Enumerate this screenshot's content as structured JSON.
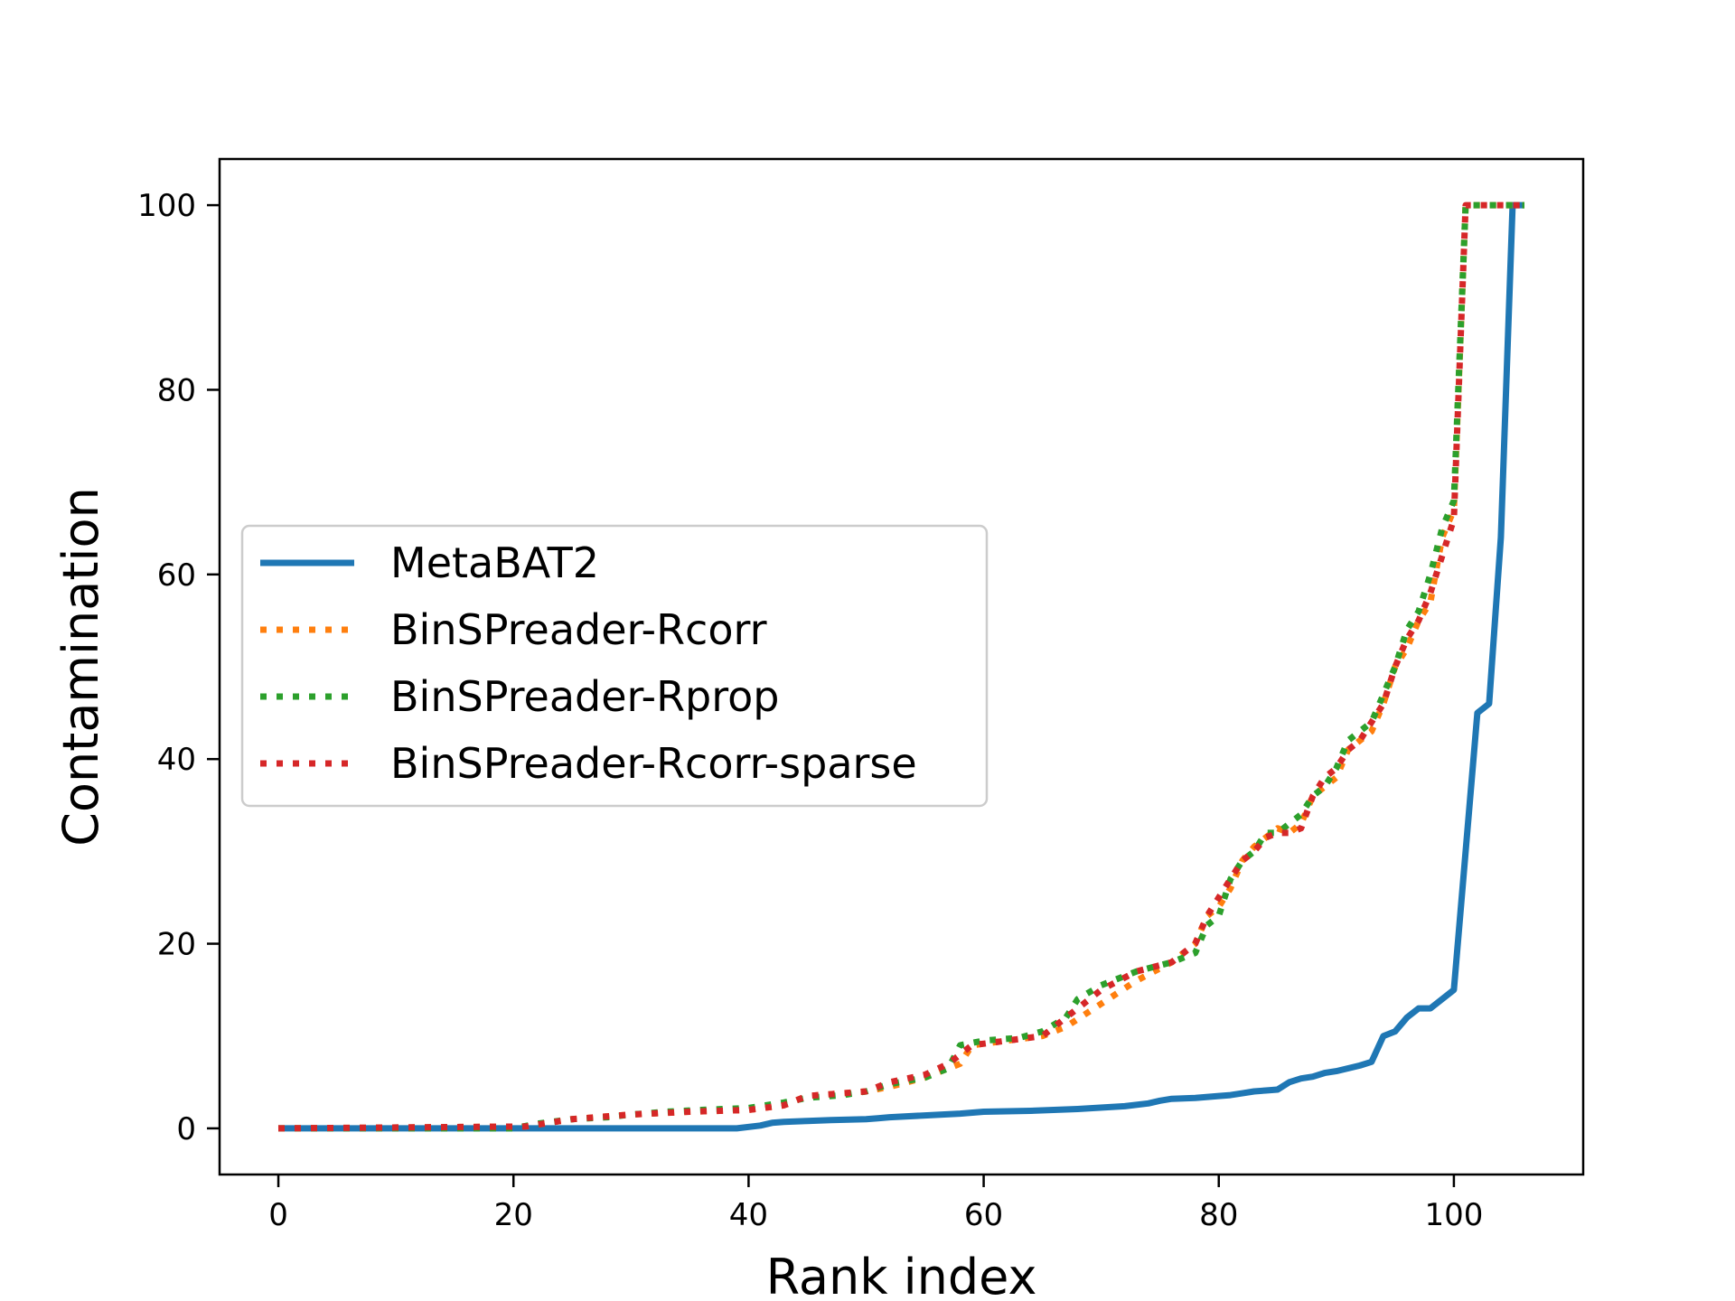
{
  "chart_data": {
    "type": "line",
    "title": "",
    "xlabel": "Rank index",
    "ylabel": "Contamination",
    "xlim": [
      -5,
      111
    ],
    "ylim": [
      -5,
      105
    ],
    "xticks": [
      0,
      20,
      40,
      60,
      80,
      100
    ],
    "yticks": [
      0,
      20,
      40,
      60,
      80,
      100
    ],
    "grid": false,
    "legend_position": "center-left",
    "series": [
      {
        "name": "MetaBAT2",
        "color": "#1f77b4",
        "style": "solid",
        "x": [
          0,
          20,
          39,
          41,
          42,
          43,
          45,
          47,
          50,
          51,
          52,
          55,
          58,
          60,
          64,
          68,
          72,
          74,
          75,
          76,
          78,
          80,
          81,
          82,
          83,
          84,
          85,
          86,
          87,
          88,
          89,
          90,
          91,
          92,
          93,
          94,
          95,
          96,
          97,
          98,
          99,
          100,
          101,
          102,
          103,
          104,
          105,
          106
        ],
        "y": [
          0,
          0,
          0,
          0.3,
          0.6,
          0.7,
          0.8,
          0.9,
          1.0,
          1.1,
          1.2,
          1.4,
          1.6,
          1.8,
          1.9,
          2.1,
          2.4,
          2.7,
          3.0,
          3.2,
          3.3,
          3.5,
          3.6,
          3.8,
          4.0,
          4.1,
          4.2,
          5.0,
          5.4,
          5.6,
          6.0,
          6.2,
          6.5,
          6.8,
          7.2,
          10.0,
          10.5,
          12.0,
          13.0,
          13.0,
          14.0,
          15.0,
          30.0,
          45.0,
          46.0,
          64.0,
          100.0,
          100.0
        ]
      },
      {
        "name": "BinSPreader-Rcorr",
        "color": "#ff7f0e",
        "style": "dotted",
        "x": [
          0,
          21,
          25,
          30,
          35,
          40,
          43,
          45,
          48,
          50,
          52,
          55,
          57,
          58,
          59,
          62,
          65,
          67,
          70,
          73,
          76,
          78,
          79,
          80,
          81,
          82,
          83,
          84,
          85,
          86,
          87,
          88,
          89,
          90,
          91,
          92,
          93,
          94,
          95,
          96,
          97,
          98,
          99,
          100,
          101,
          106
        ],
        "y": [
          0,
          0.2,
          1.0,
          1.5,
          1.8,
          2.0,
          2.5,
          3.5,
          3.8,
          4.0,
          4.5,
          5.5,
          6.5,
          7.0,
          9.0,
          9.5,
          10.0,
          11.0,
          13.5,
          16.0,
          18.0,
          20.0,
          23.0,
          24.0,
          26.0,
          29.0,
          30.5,
          31.5,
          32.5,
          32.0,
          33.0,
          36.0,
          37.0,
          38.0,
          41.0,
          42.0,
          43.0,
          46.0,
          50.0,
          52.0,
          55.0,
          57.0,
          64.0,
          67.0,
          100.0,
          100.0
        ]
      },
      {
        "name": "BinSPreader-Rprop",
        "color": "#2ca02c",
        "style": "dotted",
        "x": [
          0,
          20,
          22,
          25,
          28,
          30,
          33,
          36,
          40,
          43,
          45,
          48,
          50,
          52,
          55,
          57,
          58,
          60,
          63,
          65,
          67,
          68,
          70,
          73,
          76,
          78,
          79,
          80,
          81,
          82,
          83,
          84,
          85,
          86,
          87,
          88,
          89,
          90,
          91,
          92,
          93,
          94,
          95,
          96,
          97,
          98,
          99,
          100,
          101,
          106
        ],
        "y": [
          0,
          0,
          0.5,
          1.0,
          1.2,
          1.5,
          1.8,
          2.0,
          2.2,
          2.8,
          3.3,
          3.6,
          4.0,
          4.8,
          5.5,
          6.5,
          9.0,
          9.5,
          9.8,
          10.5,
          12.0,
          14.0,
          15.5,
          17.0,
          18.0,
          19.0,
          22.0,
          23.0,
          27.0,
          29.0,
          30.0,
          32.0,
          32.0,
          33.0,
          34.0,
          36.0,
          37.0,
          39.0,
          42.0,
          43.0,
          44.0,
          47.0,
          50.0,
          54.0,
          56.0,
          60.0,
          65.0,
          68.0,
          100.0,
          100.0
        ]
      },
      {
        "name": "BinSPreader-Rcorr-sparse",
        "color": "#d62728",
        "style": "dotted",
        "x": [
          0,
          21,
          25,
          30,
          35,
          40,
          43,
          45,
          48,
          50,
          52,
          55,
          57,
          59,
          62,
          65,
          67,
          69,
          70,
          73,
          76,
          78,
          79,
          80,
          81,
          82,
          83,
          84,
          85,
          86,
          87,
          88,
          89,
          90,
          91,
          92,
          93,
          94,
          95,
          96,
          97,
          98,
          99,
          100,
          101,
          106
        ],
        "y": [
          0,
          0.2,
          1.0,
          1.5,
          1.8,
          2.0,
          2.5,
          3.5,
          3.8,
          4.0,
          5.0,
          5.8,
          7.0,
          9.0,
          9.5,
          10.0,
          12.0,
          14.0,
          15.0,
          17.0,
          18.0,
          20.0,
          23.0,
          25.0,
          27.0,
          29.0,
          30.0,
          31.5,
          32.0,
          32.0,
          32.5,
          36.0,
          38.0,
          39.0,
          41.0,
          42.0,
          44.0,
          46.0,
          50.0,
          53.0,
          55.0,
          58.0,
          62.0,
          66.0,
          100.0,
          100.0
        ]
      }
    ]
  }
}
